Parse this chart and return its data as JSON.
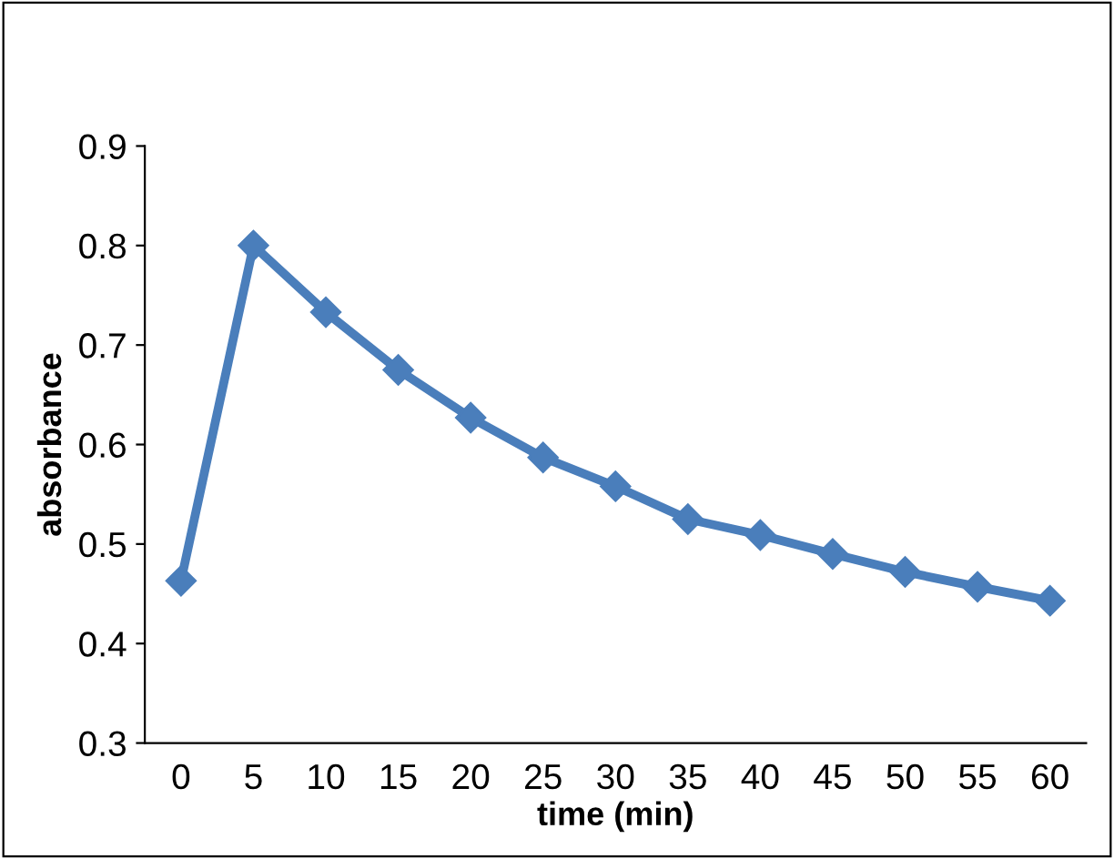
{
  "chart_data": {
    "type": "line",
    "xlabel": "time (min)",
    "ylabel": "absorbance",
    "categories": [
      "0",
      "5",
      "10",
      "15",
      "20",
      "25",
      "30",
      "35",
      "40",
      "45",
      "50",
      "55",
      "60"
    ],
    "series": [
      {
        "color": "#4a7ebb",
        "values": [
          0.463,
          0.8,
          0.733,
          0.675,
          0.627,
          0.587,
          0.558,
          0.525,
          0.509,
          0.49,
          0.472,
          0.457,
          0.443
        ]
      }
    ],
    "ylim": [
      0.3,
      0.9
    ],
    "yticks": [
      0.3,
      0.4,
      0.5,
      0.6,
      0.7,
      0.8,
      0.9
    ],
    "grid": false,
    "legend": false,
    "marker": "diamond",
    "line_style": "solid"
  }
}
